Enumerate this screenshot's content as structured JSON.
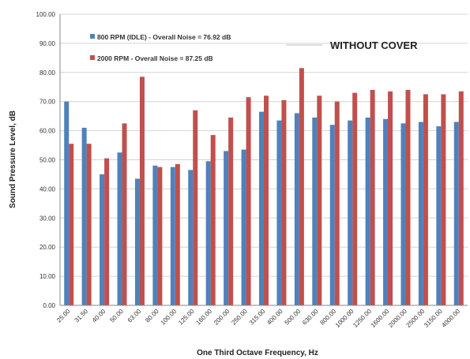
{
  "chart_data": {
    "type": "bar",
    "annotation": "WITHOUT COVER",
    "xlabel": "One Third Octave Frequency, Hz",
    "ylabel": "Sound Pressure Level, dB",
    "ylim": [
      0,
      100
    ],
    "yticks": [
      "0.00",
      "10.00",
      "20.00",
      "30.00",
      "40.00",
      "50.00",
      "60.00",
      "70.00",
      "80.00",
      "90.00",
      "100.00"
    ],
    "ytick_values": [
      0,
      10,
      20,
      30,
      40,
      50,
      60,
      70,
      80,
      90,
      100
    ],
    "categories": [
      "25.00",
      "31.50",
      "40.00",
      "50.00",
      "63.00",
      "80.00",
      "100.00",
      "125.00",
      "160.00",
      "200.00",
      "250.00",
      "315.00",
      "400.00",
      "500.00",
      "630.00",
      "800.00",
      "1000.00",
      "1250.00",
      "1600.00",
      "2000.00",
      "2500.00",
      "3150.00",
      "4000.00"
    ],
    "grid": "horizontal",
    "legend_position": "top-left",
    "series": [
      {
        "name": "800 RPM (IDLE) - Overall Noise = 76.92 dB",
        "color": "#4f81bd",
        "values": [
          70.0,
          61.0,
          45.0,
          52.5,
          43.5,
          48.0,
          47.5,
          46.5,
          49.5,
          53.0,
          53.5,
          66.5,
          63.5,
          66.0,
          64.5,
          62.0,
          63.5,
          64.5,
          64.0,
          62.5,
          63.0,
          61.5,
          63.0
        ]
      },
      {
        "name": "2000 RPM - Overall Noise = 87.25 dB",
        "color": "#c0504d",
        "values": [
          55.5,
          55.5,
          50.5,
          62.5,
          78.5,
          47.5,
          48.5,
          67.0,
          58.5,
          64.5,
          71.5,
          72.0,
          70.5,
          81.5,
          72.0,
          70.0,
          73.0,
          74.0,
          73.5,
          74.0,
          72.5,
          72.5,
          73.5
        ]
      }
    ]
  }
}
